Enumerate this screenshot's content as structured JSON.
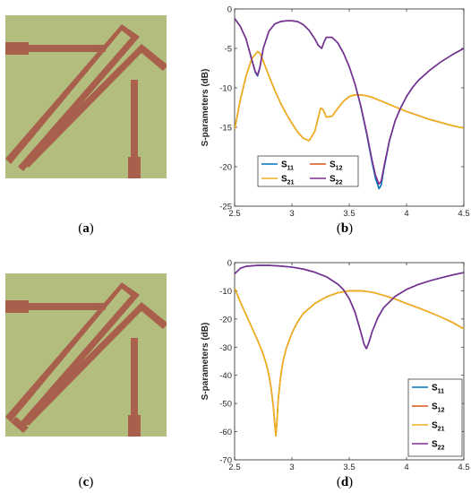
{
  "subfigure_labels": [
    "a",
    "b",
    "c",
    "d"
  ],
  "antenna_colors": {
    "substrate": "#b2bd7e",
    "metal": "#a85f4c"
  },
  "series_colors": [
    "#0072bd",
    "#d95319",
    "#edb120",
    "#7e2f8e"
  ],
  "chart_data": [
    {
      "type": "line",
      "xlabel": "Frequency (GHz)",
      "ylabel": "S-parameters (dB)",
      "xlim": [
        2.5,
        4.5
      ],
      "ylim": [
        -25,
        0
      ],
      "xticks": [
        2.5,
        3,
        3.5,
        4,
        4.5
      ],
      "yticks": [
        0,
        -5,
        -10,
        -15,
        -20,
        -25
      ],
      "xtick_labels": [
        "2.5",
        "3",
        "3.5",
        "4",
        "4.5"
      ],
      "ytick_labels": [
        "0",
        "-5",
        "-10",
        "-15",
        "-20",
        "-25"
      ],
      "grid": false,
      "legend": {
        "placement": "bottom-left",
        "columns": 2,
        "entries": [
          {
            "main": "S",
            "sub": "11"
          },
          {
            "main": "S",
            "sub": "12"
          },
          {
            "main": "S",
            "sub": "21"
          },
          {
            "main": "S",
            "sub": "22"
          }
        ]
      },
      "series": [
        {
          "name": "S11",
          "color": "#0072bd",
          "x": [
            2.5,
            2.55,
            2.6,
            2.65,
            2.68,
            2.7,
            2.72,
            2.75,
            2.8,
            2.85,
            2.9,
            2.95,
            3.0,
            3.05,
            3.1,
            3.15,
            3.2,
            3.23,
            3.26,
            3.28,
            3.3,
            3.35,
            3.4,
            3.45,
            3.5,
            3.55,
            3.6,
            3.65,
            3.7,
            3.73,
            3.76,
            3.78,
            3.8,
            3.85,
            3.9,
            3.95,
            4.0,
            4.05,
            4.1,
            4.2,
            4.3,
            4.4,
            4.5
          ],
          "y": [
            -1.2,
            -2.2,
            -3.8,
            -6.5,
            -8.0,
            -8.5,
            -7.5,
            -5.0,
            -2.8,
            -1.9,
            -1.6,
            -1.5,
            -1.5,
            -1.6,
            -2.0,
            -2.7,
            -3.8,
            -4.6,
            -5.0,
            -4.2,
            -3.6,
            -3.6,
            -4.3,
            -5.6,
            -7.3,
            -9.5,
            -12.3,
            -15.7,
            -19.5,
            -21.5,
            -22.8,
            -22.3,
            -20.5,
            -16.8,
            -14.2,
            -12.5,
            -11.1,
            -10.0,
            -9.1,
            -7.8,
            -6.7,
            -5.8,
            -5.0
          ]
        },
        {
          "name": "S12",
          "color": "#d95319",
          "x": [
            2.5,
            2.55,
            2.6,
            2.65,
            2.7,
            2.72,
            2.75,
            2.8,
            2.85,
            2.9,
            2.95,
            3.0,
            3.05,
            3.1,
            3.15,
            3.2,
            3.25,
            3.27,
            3.3,
            3.35,
            3.4,
            3.45,
            3.5,
            3.55,
            3.6,
            3.65,
            3.7,
            3.75,
            3.8,
            3.85,
            3.9,
            3.95,
            4.0,
            4.1,
            4.2,
            4.3,
            4.4,
            4.5
          ],
          "y": [
            -15.3,
            -11.5,
            -8.5,
            -6.3,
            -5.4,
            -5.6,
            -6.6,
            -8.5,
            -10.3,
            -11.9,
            -13.3,
            -14.5,
            -15.6,
            -16.4,
            -16.7,
            -15.5,
            -12.6,
            -12.7,
            -13.7,
            -13.6,
            -12.6,
            -11.7,
            -11.1,
            -10.9,
            -10.9,
            -11.0,
            -11.2,
            -11.5,
            -11.8,
            -12.1,
            -12.4,
            -12.7,
            -13.0,
            -13.5,
            -14.0,
            -14.4,
            -14.8,
            -15.1
          ]
        },
        {
          "name": "S21",
          "color": "#edb120",
          "x": [
            2.5,
            2.55,
            2.6,
            2.65,
            2.7,
            2.72,
            2.75,
            2.8,
            2.85,
            2.9,
            2.95,
            3.0,
            3.05,
            3.1,
            3.15,
            3.2,
            3.25,
            3.27,
            3.3,
            3.35,
            3.4,
            3.45,
            3.5,
            3.55,
            3.6,
            3.65,
            3.7,
            3.75,
            3.8,
            3.85,
            3.9,
            3.95,
            4.0,
            4.1,
            4.2,
            4.3,
            4.4,
            4.5
          ],
          "y": [
            -15.3,
            -11.5,
            -8.5,
            -6.3,
            -5.4,
            -5.6,
            -6.6,
            -8.5,
            -10.3,
            -11.9,
            -13.3,
            -14.5,
            -15.6,
            -16.4,
            -16.7,
            -15.5,
            -12.6,
            -12.7,
            -13.7,
            -13.6,
            -12.6,
            -11.7,
            -11.1,
            -10.9,
            -10.9,
            -11.0,
            -11.2,
            -11.5,
            -11.8,
            -12.1,
            -12.4,
            -12.7,
            -13.0,
            -13.5,
            -14.0,
            -14.4,
            -14.8,
            -15.1
          ]
        },
        {
          "name": "S22",
          "color": "#7e2f8e",
          "x": [
            2.5,
            2.55,
            2.6,
            2.65,
            2.68,
            2.7,
            2.72,
            2.75,
            2.8,
            2.85,
            2.9,
            2.95,
            3.0,
            3.05,
            3.1,
            3.15,
            3.2,
            3.23,
            3.26,
            3.28,
            3.3,
            3.35,
            3.4,
            3.45,
            3.5,
            3.55,
            3.6,
            3.65,
            3.7,
            3.73,
            3.76,
            3.78,
            3.8,
            3.85,
            3.9,
            3.95,
            4.0,
            4.05,
            4.1,
            4.2,
            4.3,
            4.4,
            4.5
          ],
          "y": [
            -1.2,
            -2.2,
            -3.8,
            -6.4,
            -7.9,
            -8.4,
            -7.4,
            -5.0,
            -2.8,
            -1.9,
            -1.6,
            -1.5,
            -1.5,
            -1.6,
            -2.0,
            -2.7,
            -3.8,
            -4.6,
            -5.0,
            -4.2,
            -3.6,
            -3.6,
            -4.3,
            -5.6,
            -7.3,
            -9.5,
            -12.2,
            -15.5,
            -19.2,
            -21.1,
            -22.2,
            -21.8,
            -20.2,
            -16.7,
            -14.2,
            -12.5,
            -11.1,
            -10.0,
            -9.1,
            -7.8,
            -6.7,
            -5.8,
            -5.0
          ]
        }
      ]
    },
    {
      "type": "line",
      "xlabel": "Frequency (GHz)",
      "ylabel": "S-parameters (dB)",
      "xlim": [
        2.5,
        4.5
      ],
      "ylim": [
        -70,
        0
      ],
      "xticks": [
        2.5,
        3,
        3.5,
        4,
        4.5
      ],
      "yticks": [
        0,
        -10,
        -20,
        -30,
        -40,
        -50,
        -60,
        -70
      ],
      "xtick_labels": [
        "2.5",
        "3",
        "3.5",
        "4",
        "4.5"
      ],
      "ytick_labels": [
        "0",
        "-10",
        "-20",
        "-30",
        "-40",
        "-50",
        "-60",
        "-70"
      ],
      "grid": false,
      "legend": {
        "placement": "bottom-right",
        "columns": 1,
        "entries": [
          {
            "main": "S",
            "sub": "11"
          },
          {
            "main": "S",
            "sub": "12"
          },
          {
            "main": "S",
            "sub": "21"
          },
          {
            "main": "S",
            "sub": "22"
          }
        ]
      },
      "series": [
        {
          "name": "S11",
          "color": "#0072bd",
          "x": [
            2.5,
            2.55,
            2.6,
            2.7,
            2.8,
            2.9,
            3.0,
            3.1,
            3.2,
            3.3,
            3.4,
            3.45,
            3.5,
            3.55,
            3.6,
            3.63,
            3.65,
            3.67,
            3.7,
            3.75,
            3.8,
            3.9,
            4.0,
            4.1,
            4.2,
            4.3,
            4.4,
            4.5
          ],
          "y": [
            -4.0,
            -2.0,
            -1.3,
            -1.0,
            -1.0,
            -1.2,
            -1.6,
            -2.3,
            -3.4,
            -5.0,
            -7.6,
            -9.6,
            -12.8,
            -17.5,
            -24.5,
            -29.0,
            -30.5,
            -28.5,
            -24.5,
            -19.5,
            -16.0,
            -12.0,
            -9.5,
            -7.8,
            -6.5,
            -5.4,
            -4.4,
            -3.5
          ]
        },
        {
          "name": "S12",
          "color": "#d95319",
          "x": [
            2.5,
            2.55,
            2.6,
            2.65,
            2.7,
            2.75,
            2.78,
            2.8,
            2.82,
            2.84,
            2.85,
            2.86,
            2.87,
            2.88,
            2.9,
            2.92,
            2.95,
            3.0,
            3.05,
            3.1,
            3.2,
            3.3,
            3.4,
            3.5,
            3.6,
            3.7,
            3.8,
            3.9,
            4.0,
            4.1,
            4.2,
            4.3,
            4.4,
            4.5
          ],
          "y": [
            -9.0,
            -14.0,
            -18.5,
            -23.0,
            -27.5,
            -32.5,
            -36.5,
            -40.0,
            -45.0,
            -52.0,
            -57.0,
            -61.5,
            -56.0,
            -49.0,
            -41.0,
            -35.5,
            -30.5,
            -25.0,
            -21.0,
            -18.0,
            -14.5,
            -12.2,
            -10.7,
            -10.0,
            -10.0,
            -10.5,
            -11.6,
            -12.9,
            -14.5,
            -16.0,
            -17.6,
            -19.3,
            -21.2,
            -23.5
          ]
        },
        {
          "name": "S21",
          "color": "#edb120",
          "x": [
            2.5,
            2.55,
            2.6,
            2.65,
            2.7,
            2.75,
            2.78,
            2.8,
            2.82,
            2.84,
            2.85,
            2.86,
            2.87,
            2.88,
            2.9,
            2.92,
            2.95,
            3.0,
            3.05,
            3.1,
            3.2,
            3.3,
            3.4,
            3.5,
            3.6,
            3.7,
            3.8,
            3.9,
            4.0,
            4.1,
            4.2,
            4.3,
            4.4,
            4.5
          ],
          "y": [
            -9.0,
            -14.0,
            -18.5,
            -23.0,
            -27.5,
            -32.5,
            -36.5,
            -40.0,
            -45.0,
            -52.0,
            -57.0,
            -61.5,
            -56.0,
            -49.0,
            -41.0,
            -35.5,
            -30.5,
            -25.0,
            -21.0,
            -18.0,
            -14.5,
            -12.2,
            -10.7,
            -10.0,
            -10.0,
            -10.5,
            -11.6,
            -12.9,
            -14.5,
            -16.0,
            -17.6,
            -19.3,
            -21.2,
            -23.5
          ]
        },
        {
          "name": "S22",
          "color": "#7e2f8e",
          "x": [
            2.5,
            2.55,
            2.6,
            2.7,
            2.8,
            2.9,
            3.0,
            3.1,
            3.2,
            3.3,
            3.4,
            3.45,
            3.5,
            3.55,
            3.6,
            3.63,
            3.65,
            3.67,
            3.7,
            3.75,
            3.8,
            3.9,
            4.0,
            4.1,
            4.2,
            4.3,
            4.4,
            4.5
          ],
          "y": [
            -4.0,
            -2.0,
            -1.3,
            -1.0,
            -1.0,
            -1.2,
            -1.6,
            -2.3,
            -3.4,
            -5.0,
            -7.6,
            -9.6,
            -12.8,
            -17.5,
            -24.5,
            -29.0,
            -30.5,
            -28.5,
            -24.5,
            -19.5,
            -16.0,
            -12.0,
            -9.5,
            -7.8,
            -6.5,
            -5.4,
            -4.4,
            -3.5
          ]
        }
      ]
    }
  ]
}
